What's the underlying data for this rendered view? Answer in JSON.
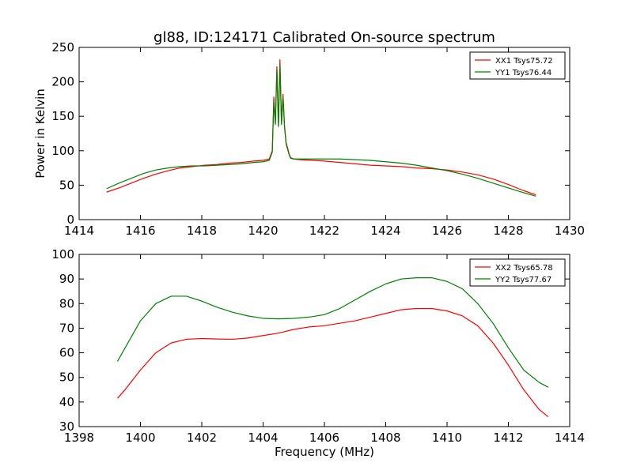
{
  "chart_data": [
    {
      "type": "line",
      "title": "gl88, ID:124171 Calibrated On-source spectrum",
      "xlabel": "",
      "ylabel": "Power in Kelvin",
      "xlim": [
        1414,
        1430
      ],
      "ylim": [
        0,
        250
      ],
      "xticks": [
        1414,
        1416,
        1418,
        1420,
        1422,
        1424,
        1426,
        1428,
        1430
      ],
      "yticks": [
        0,
        50,
        100,
        150,
        200,
        250
      ],
      "grid": false,
      "legend_position": "top-right",
      "series": [
        {
          "name": "XX1 Tsys75.72",
          "color": "#ff0000",
          "x": [
            1414.9,
            1415.3,
            1415.7,
            1416.1,
            1416.5,
            1416.9,
            1417.3,
            1417.7,
            1418.1,
            1418.5,
            1418.9,
            1419.3,
            1419.7,
            1420.0,
            1420.2,
            1420.3,
            1420.35,
            1420.4,
            1420.45,
            1420.5,
            1420.55,
            1420.6,
            1420.65,
            1420.7,
            1420.75,
            1420.8,
            1420.85,
            1420.9,
            1421.0,
            1421.2,
            1421.6,
            1422.0,
            1422.5,
            1423.0,
            1423.5,
            1424.0,
            1424.5,
            1425.0,
            1425.5,
            1426.0,
            1426.5,
            1427.0,
            1427.5,
            1428.0,
            1428.5,
            1428.9
          ],
          "values": [
            40,
            46,
            53,
            60,
            66,
            71,
            75,
            77,
            79,
            80,
            82,
            83,
            85,
            86,
            88,
            100,
            178,
            140,
            222,
            136,
            232,
            140,
            182,
            135,
            112,
            104,
            95,
            90,
            88,
            87,
            86,
            85,
            83,
            81,
            79,
            78,
            77,
            75,
            74,
            72,
            69,
            65,
            59,
            51,
            42,
            36
          ]
        },
        {
          "name": "YY1 Tsys76.44",
          "color": "#008000",
          "x": [
            1414.9,
            1415.3,
            1415.7,
            1416.1,
            1416.5,
            1416.9,
            1417.3,
            1417.7,
            1418.1,
            1418.5,
            1418.9,
            1419.3,
            1419.7,
            1420.0,
            1420.2,
            1420.3,
            1420.35,
            1420.4,
            1420.45,
            1420.5,
            1420.55,
            1420.6,
            1420.65,
            1420.7,
            1420.75,
            1420.8,
            1420.85,
            1420.9,
            1421.0,
            1421.2,
            1421.6,
            1422.0,
            1422.5,
            1423.0,
            1423.5,
            1424.0,
            1424.5,
            1425.0,
            1425.5,
            1426.0,
            1426.5,
            1427.0,
            1427.5,
            1428.0,
            1428.5,
            1428.9
          ],
          "values": [
            45,
            53,
            60,
            67,
            72,
            75,
            77,
            78,
            78,
            79,
            80,
            81,
            83,
            84,
            86,
            98,
            172,
            138,
            218,
            135,
            225,
            138,
            178,
            134,
            110,
            102,
            94,
            89,
            88,
            88,
            88,
            88,
            88,
            87,
            86,
            84,
            82,
            79,
            75,
            71,
            66,
            60,
            53,
            46,
            39,
            34
          ]
        }
      ]
    },
    {
      "type": "line",
      "title": "",
      "xlabel": "Frequency (MHz)",
      "ylabel": "",
      "xlim": [
        1398,
        1414
      ],
      "ylim": [
        30,
        100
      ],
      "xticks": [
        1398,
        1400,
        1402,
        1404,
        1406,
        1408,
        1410,
        1412,
        1414
      ],
      "yticks": [
        30,
        40,
        50,
        60,
        70,
        80,
        90,
        100
      ],
      "grid": false,
      "legend_position": "top-right",
      "series": [
        {
          "name": "XX2 Tsys65.78",
          "color": "#ff0000",
          "x": [
            1399.25,
            1399.5,
            1400.0,
            1400.5,
            1401.0,
            1401.5,
            1402.0,
            1402.5,
            1403.0,
            1403.5,
            1404.0,
            1404.5,
            1405.0,
            1405.5,
            1406.0,
            1406.5,
            1407.0,
            1407.5,
            1408.0,
            1408.5,
            1409.0,
            1409.5,
            1410.0,
            1410.5,
            1411.0,
            1411.5,
            1412.0,
            1412.5,
            1413.0,
            1413.3
          ],
          "values": [
            41.5,
            45,
            53,
            60,
            64,
            65.5,
            65.8,
            65.6,
            65.5,
            66,
            67,
            68,
            69.5,
            70.5,
            71,
            72,
            73,
            74.5,
            76,
            77.5,
            78,
            78,
            77,
            75,
            71,
            64,
            55,
            45,
            37,
            34
          ]
        },
        {
          "name": "YY2 Tsys77.67",
          "color": "#008000",
          "x": [
            1399.25,
            1399.5,
            1400.0,
            1400.5,
            1401.0,
            1401.5,
            1402.0,
            1402.5,
            1403.0,
            1403.5,
            1404.0,
            1404.5,
            1405.0,
            1405.5,
            1406.0,
            1406.5,
            1407.0,
            1407.5,
            1408.0,
            1408.5,
            1409.0,
            1409.5,
            1410.0,
            1410.5,
            1411.0,
            1411.5,
            1412.0,
            1412.5,
            1413.0,
            1413.3
          ],
          "values": [
            56.5,
            62,
            73,
            80,
            83,
            83,
            81,
            78.5,
            76.5,
            75,
            74,
            73.8,
            74,
            74.5,
            75.5,
            78,
            81.5,
            85,
            88,
            90,
            90.5,
            90.5,
            89,
            86,
            80,
            72,
            62,
            53,
            48,
            46
          ]
        }
      ]
    }
  ]
}
